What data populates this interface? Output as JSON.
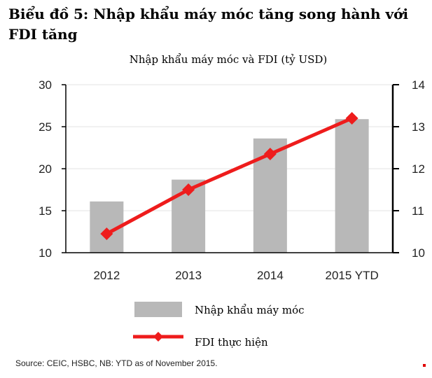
{
  "heading": {
    "line1": "Biểu đồ 5: Nhập khẩu máy móc tăng song hành với",
    "line2": "FDI tăng"
  },
  "chart_data": {
    "type": "bar",
    "title": "Nhập khẩu máy móc và FDI (tỷ USD)",
    "categories": [
      "2012",
      "2013",
      "2014",
      "2015 YTD"
    ],
    "series": [
      {
        "name": "Nhập khẩu máy móc",
        "type": "bar",
        "axis": "left",
        "color": "#b8b8b8",
        "values": [
          16.1,
          18.7,
          23.6,
          25.9
        ]
      },
      {
        "name": "FDI thực hiện",
        "type": "line",
        "axis": "right",
        "color": "#ee1c1c",
        "marker": "diamond",
        "values": [
          10.45,
          11.5,
          12.35,
          13.2
        ]
      }
    ],
    "y_left": {
      "min": 10,
      "max": 30,
      "ticks": [
        "10",
        "15",
        "20",
        "25",
        "30"
      ]
    },
    "y_right": {
      "min": 10,
      "max": 14,
      "ticks": [
        "10",
        "11",
        "12",
        "13",
        "14"
      ]
    },
    "grid": true,
    "legend": "bottom"
  },
  "source": "Source: CEIC, HSBC, NB: YTD as of November 2015."
}
